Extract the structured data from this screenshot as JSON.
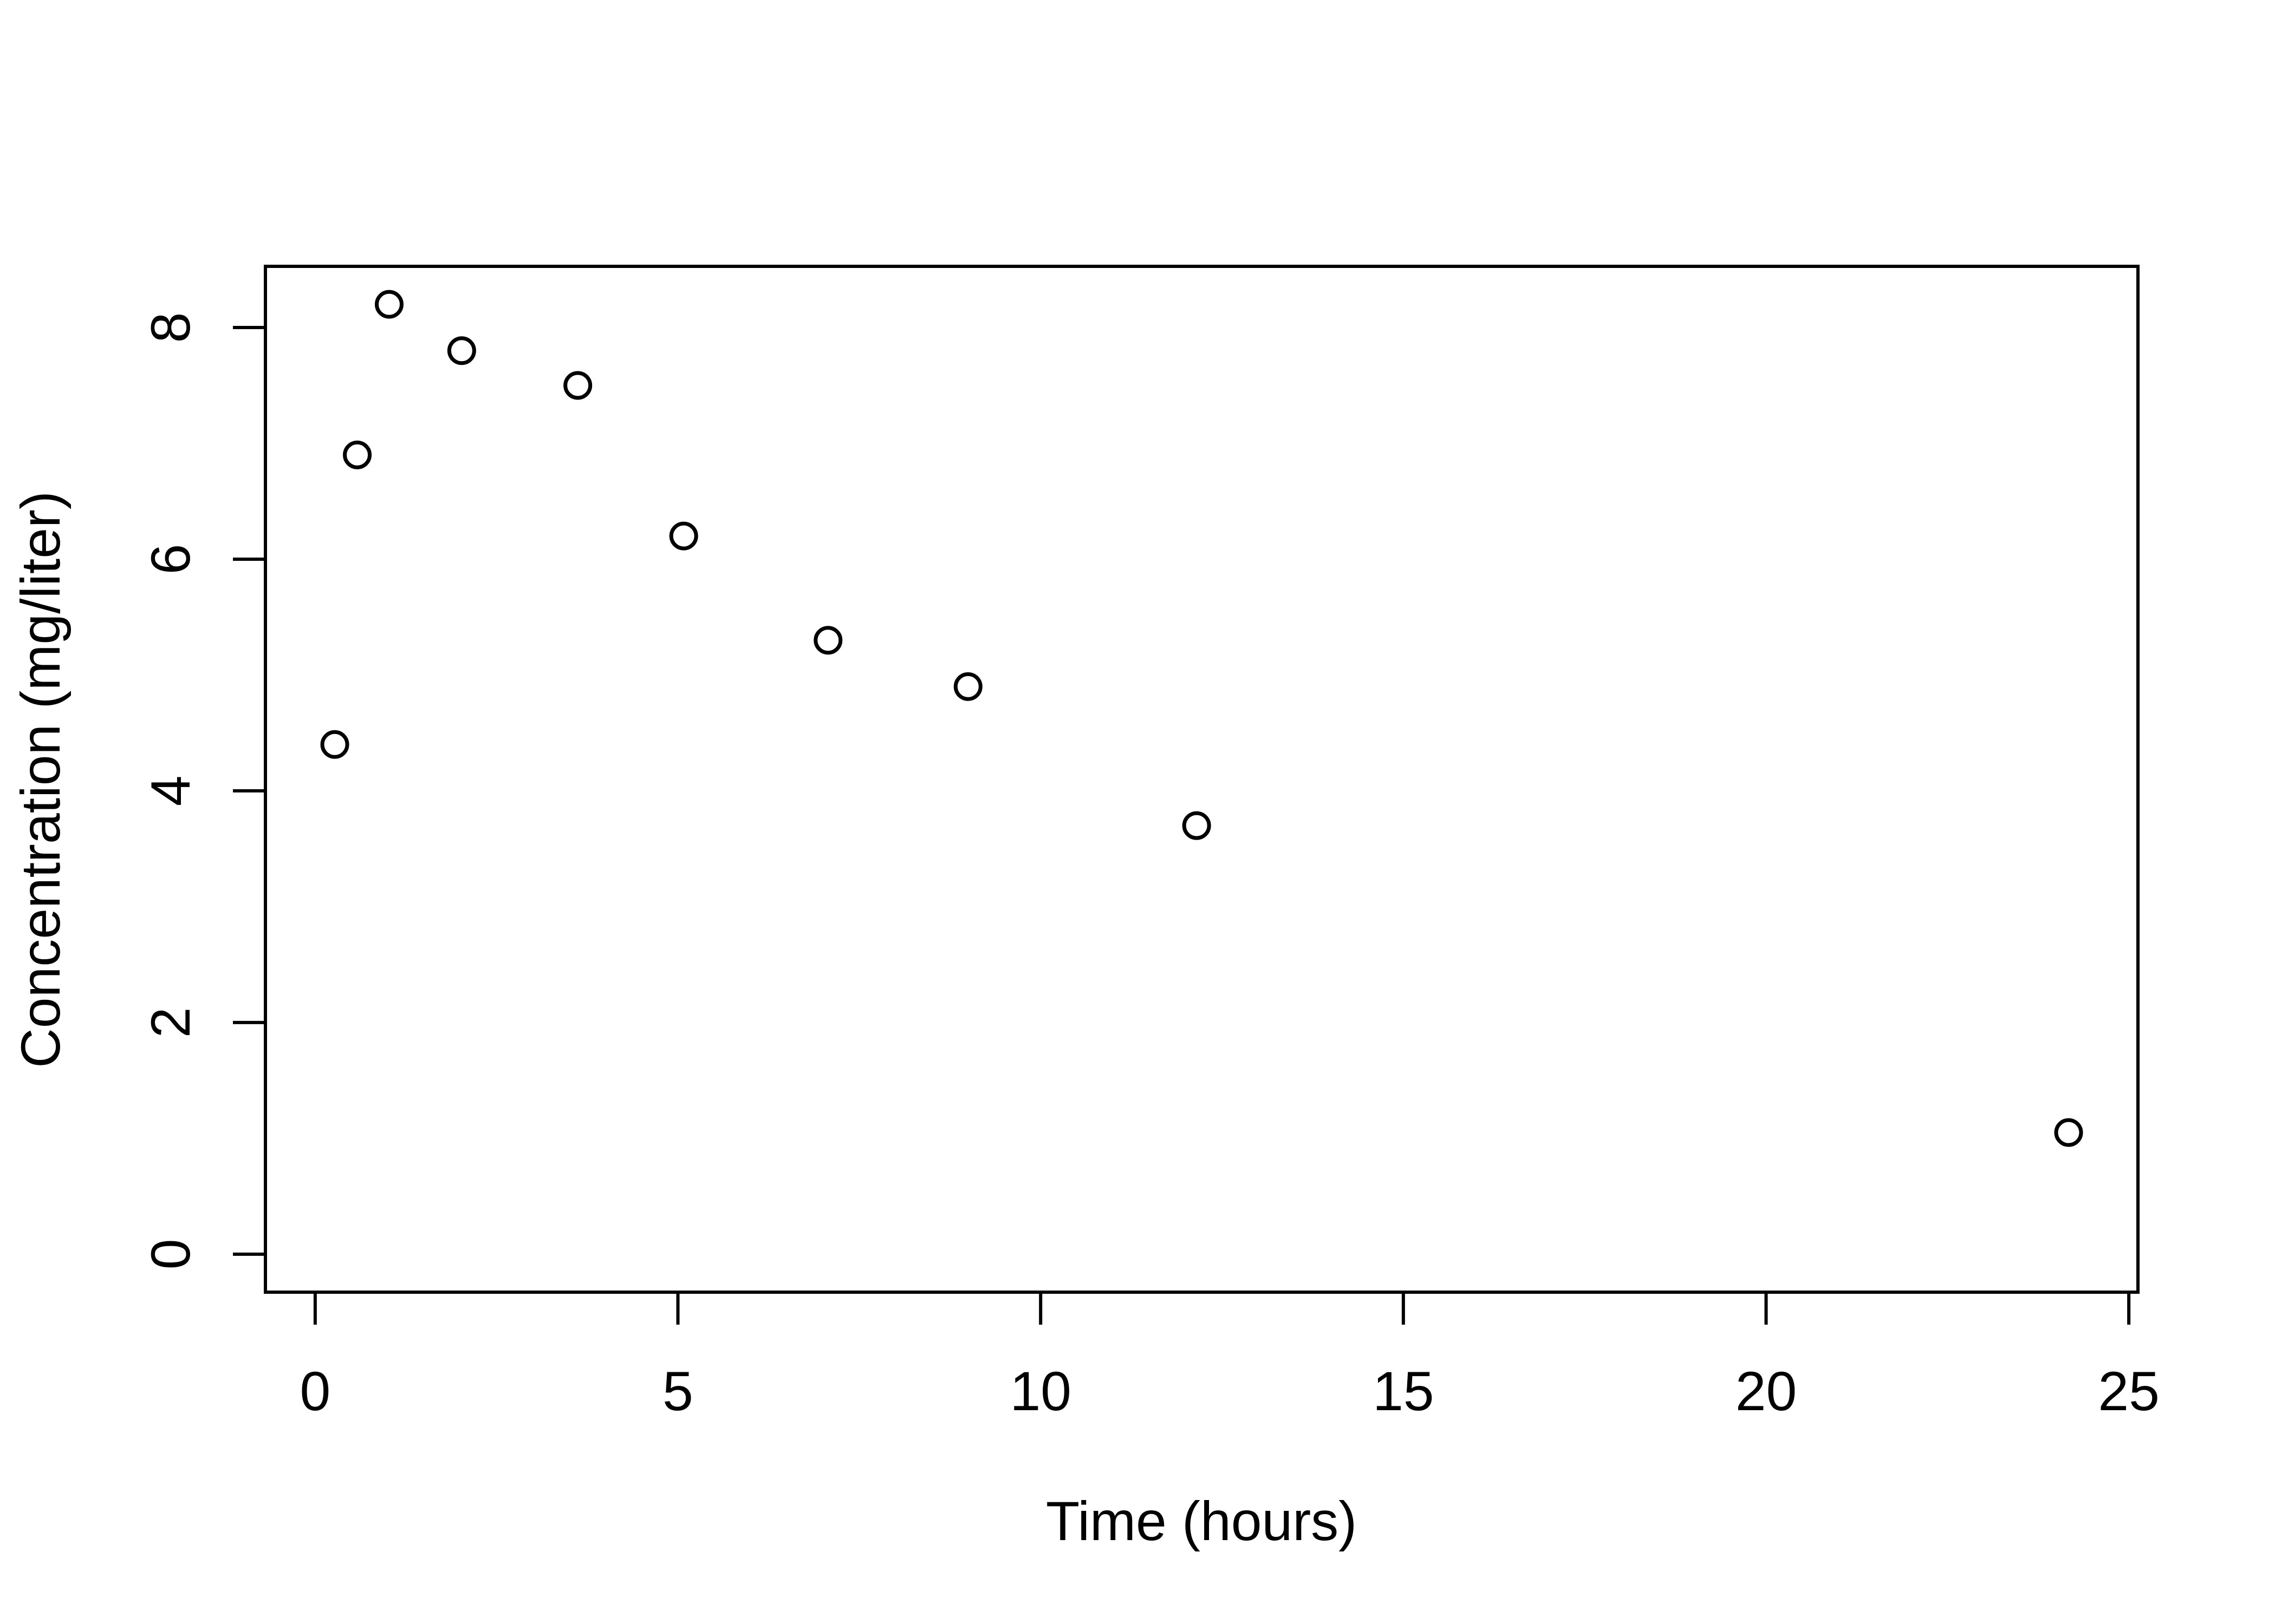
{
  "figure": {
    "background_color": "#ffffff",
    "foreground_color": "#000000"
  },
  "chart_data": {
    "type": "scatter",
    "title": "",
    "xlabel": "Time (hours)",
    "ylabel": "Concentration (mg/liter)",
    "x": [
      0.27,
      0.58,
      1.02,
      2.02,
      3.62,
      5.08,
      7.07,
      9.0,
      12.15,
      24.17
    ],
    "y": [
      4.4,
      6.9,
      8.2,
      7.8,
      7.5,
      6.2,
      5.3,
      4.9,
      3.7,
      1.05
    ],
    "x_ticks": [
      0,
      5,
      10,
      15,
      20,
      25
    ],
    "y_ticks": [
      0,
      2,
      4,
      6,
      8
    ],
    "x_tick_labels": [
      "0",
      "5",
      "10",
      "15",
      "20",
      "25"
    ],
    "y_tick_labels": [
      "0",
      "2",
      "4",
      "6",
      "8"
    ],
    "xlim": [
      -0.686,
      25.126
    ],
    "ylim": [
      -0.328,
      8.528
    ],
    "grid": false,
    "legend": null,
    "marker": "open-circle",
    "marker_color": "#000000"
  }
}
